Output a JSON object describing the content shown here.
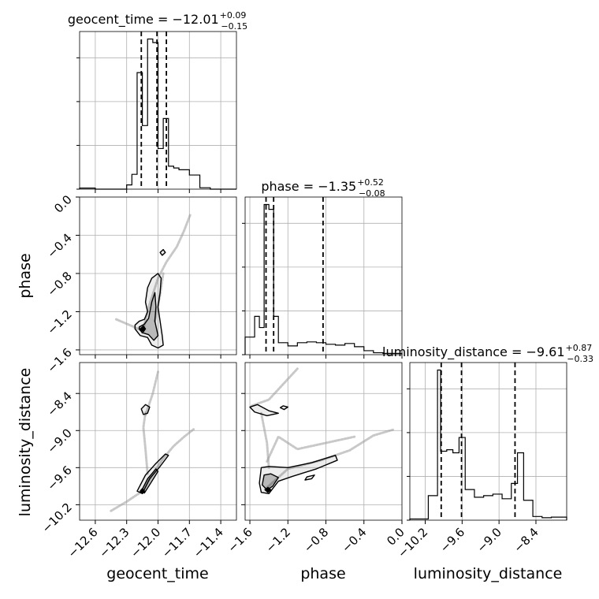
{
  "chart_data": {
    "type": "corner",
    "parameters": [
      "geocent_time",
      "phase",
      "luminosity_distance"
    ],
    "titles": [
      {
        "param": "geocent_time",
        "text": "geocent_time = −12.01",
        "plus": "+0.09",
        "minus": "−0.15"
      },
      {
        "param": "phase",
        "text": "phase = −1.35",
        "plus": "+0.52",
        "minus": "−0.08"
      },
      {
        "param": "luminosity_distance",
        "text": "luminosity_distance = −9.61",
        "plus": "+0.87",
        "minus": "−0.33"
      }
    ],
    "axis_labels": {
      "x": [
        "geocent_time",
        "phase",
        "luminosity_distance"
      ],
      "y": [
        "phase",
        "luminosity_distance"
      ]
    },
    "ranges": {
      "geocent_time": [
        -12.75,
        -11.25
      ],
      "phase": [
        -1.65,
        0.0
      ],
      "luminosity_distance": [
        -10.45,
        -7.9
      ]
    },
    "ticks": {
      "geocent_time": {
        "values": [
          -12.6,
          -12.3,
          -12.0,
          -11.7,
          -11.4
        ],
        "labels": [
          "−12.6",
          "−12.3",
          "−12.0",
          "−11.7",
          "−11.4"
        ]
      },
      "phase": {
        "values": [
          -1.6,
          -1.2,
          -0.8,
          -0.4,
          0.0
        ],
        "labels": [
          "−1.6",
          "−1.2",
          "−0.8",
          "−0.4",
          "0.0"
        ]
      },
      "luminosity_distance": {
        "values": [
          -10.2,
          -9.6,
          -9.0,
          -8.4
        ],
        "labels": [
          "−10.2",
          "−9.6",
          "−9.0",
          "−8.4"
        ]
      }
    },
    "quantiles": {
      "geocent_time": [
        -12.16,
        -12.01,
        -11.92
      ],
      "phase": [
        -1.43,
        -1.35,
        -0.83
      ],
      "luminosity_distance": [
        -9.94,
        -9.61,
        -8.74
      ]
    },
    "histograms": {
      "geocent_time": {
        "edges": [
          -12.75,
          -12.6,
          -12.45,
          -12.3,
          -12.25,
          -12.2,
          -12.15,
          -12.1,
          -12.05,
          -12.0,
          -11.95,
          -11.9,
          -11.85,
          -11.8,
          -11.7,
          -11.6,
          -11.5,
          -11.25
        ],
        "heights": [
          0.3,
          0.0,
          0.0,
          1.2,
          4.2,
          33.0,
          18.0,
          42.5,
          41.5,
          11.5,
          20.0,
          6.5,
          6.0,
          5.5,
          4.0,
          0.4,
          0.0
        ]
      },
      "phase": {
        "edges": [
          -1.65,
          -1.55,
          -1.5,
          -1.45,
          -1.4,
          -1.35,
          -1.3,
          -1.2,
          -1.1,
          -1.0,
          -0.9,
          -0.8,
          -0.7,
          -0.6,
          -0.5,
          -0.4,
          -0.3,
          -0.2,
          0.0
        ],
        "heights": [
          11.0,
          24.0,
          17.0,
          94.0,
          91.0,
          24.0,
          7.5,
          5.5,
          7.5,
          8.0,
          7.5,
          6.5,
          6.0,
          7.0,
          5.0,
          2.5,
          1.2,
          0.8
        ]
      },
      "luminosity_distance": {
        "edges": [
          -10.45,
          -10.3,
          -10.15,
          -10.0,
          -9.95,
          -9.85,
          -9.75,
          -9.65,
          -9.55,
          -9.4,
          -9.25,
          -9.1,
          -8.95,
          -8.8,
          -8.7,
          -8.6,
          -8.45,
          -8.3,
          -8.15,
          -7.9
        ],
        "heights": [
          0.4,
          0.4,
          8.0,
          49.0,
          22.5,
          23.0,
          22.0,
          27.0,
          10.0,
          7.5,
          8.0,
          8.5,
          7.0,
          12.0,
          22.0,
          6.5,
          1.2,
          0.8,
          1.0
        ]
      }
    },
    "scatter_tracks": [
      {
        "pair": [
          "geocent_time",
          "phase"
        ],
        "path": [
          [
            -12.15,
            -1.42
          ],
          [
            -12.08,
            -1.12
          ],
          [
            -12.0,
            -0.85
          ],
          [
            -11.92,
            -0.68
          ],
          [
            -11.82,
            -0.52
          ],
          [
            -11.75,
            -0.35
          ],
          [
            -11.69,
            -0.18
          ]
        ]
      },
      {
        "pair": [
          "geocent_time",
          "phase"
        ],
        "path": [
          [
            -12.4,
            -1.28
          ],
          [
            -12.25,
            -1.35
          ],
          [
            -12.15,
            -1.4
          ]
        ]
      },
      {
        "pair": [
          "geocent_time",
          "phase"
        ],
        "path": [
          [
            -12.03,
            -1.3
          ],
          [
            -11.98,
            -1.02
          ],
          [
            -11.95,
            -0.8
          ]
        ]
      },
      {
        "pair": [
          "geocent_time",
          "luminosity_distance"
        ],
        "path": [
          [
            -12.14,
            -9.95
          ],
          [
            -12.05,
            -9.7
          ],
          [
            -11.95,
            -9.45
          ],
          [
            -11.85,
            -9.25
          ],
          [
            -11.75,
            -9.1
          ],
          [
            -11.66,
            -8.98
          ]
        ]
      },
      {
        "pair": [
          "geocent_time",
          "luminosity_distance"
        ],
        "path": [
          [
            -12.1,
            -9.7
          ],
          [
            -12.12,
            -9.3
          ],
          [
            -12.14,
            -8.95
          ],
          [
            -12.12,
            -8.7
          ]
        ]
      },
      {
        "pair": [
          "geocent_time",
          "luminosity_distance"
        ],
        "path": [
          [
            -12.12,
            -8.75
          ],
          [
            -12.05,
            -8.4
          ],
          [
            -12.0,
            -8.05
          ]
        ]
      },
      {
        "pair": [
          "geocent_time",
          "luminosity_distance"
        ],
        "path": [
          [
            -12.45,
            -10.3
          ],
          [
            -12.3,
            -10.15
          ],
          [
            -12.15,
            -9.98
          ]
        ]
      },
      {
        "pair": [
          "phase",
          "luminosity_distance"
        ],
        "path": [
          [
            -1.44,
            -9.95
          ],
          [
            -1.2,
            -9.62
          ],
          [
            -0.85,
            -9.48
          ],
          [
            -0.55,
            -9.32
          ],
          [
            -0.3,
            -9.08
          ],
          [
            -0.08,
            -8.98
          ]
        ]
      },
      {
        "pair": [
          "phase",
          "luminosity_distance"
        ],
        "path": [
          [
            -1.42,
            -9.5
          ],
          [
            -1.3,
            -9.1
          ],
          [
            -1.1,
            -9.3
          ],
          [
            -0.8,
            -9.2
          ],
          [
            -0.5,
            -9.1
          ]
        ]
      },
      {
        "pair": [
          "phase",
          "luminosity_distance"
        ],
        "path": [
          [
            -1.58,
            -8.6
          ],
          [
            -1.4,
            -8.5
          ],
          [
            -1.25,
            -8.25
          ],
          [
            -1.1,
            -8.0
          ]
        ]
      },
      {
        "pair": [
          "phase",
          "luminosity_distance"
        ],
        "path": [
          [
            -1.48,
            -8.72
          ],
          [
            -1.42,
            -9.2
          ],
          [
            -1.4,
            -9.6
          ]
        ]
      }
    ],
    "contours": [
      {
        "pair": [
          "geocent_time",
          "phase"
        ],
        "level": "outer",
        "path": [
          [
            -12.22,
            -1.34
          ],
          [
            -12.18,
            -1.3
          ],
          [
            -12.13,
            -1.28
          ],
          [
            -12.1,
            -1.2
          ],
          [
            -12.12,
            -1.1
          ],
          [
            -12.1,
            -0.95
          ],
          [
            -12.06,
            -0.85
          ],
          [
            -12.0,
            -0.8
          ],
          [
            -11.97,
            -0.85
          ],
          [
            -11.98,
            -1.0
          ],
          [
            -12.0,
            -1.15
          ],
          [
            -11.98,
            -1.3
          ],
          [
            -11.96,
            -1.45
          ],
          [
            -11.95,
            -1.55
          ],
          [
            -12.0,
            -1.58
          ],
          [
            -12.06,
            -1.55
          ],
          [
            -12.1,
            -1.47
          ],
          [
            -12.17,
            -1.45
          ],
          [
            -12.22,
            -1.38
          ],
          [
            -12.22,
            -1.34
          ]
        ]
      },
      {
        "pair": [
          "geocent_time",
          "phase"
        ],
        "level": "inner",
        "path": [
          [
            -12.18,
            -1.36
          ],
          [
            -12.13,
            -1.33
          ],
          [
            -12.09,
            -1.27
          ],
          [
            -12.06,
            -1.1
          ],
          [
            -12.03,
            -1.0
          ],
          [
            -12.02,
            -1.15
          ],
          [
            -12.03,
            -1.3
          ],
          [
            -12.0,
            -1.45
          ],
          [
            -12.04,
            -1.5
          ],
          [
            -12.09,
            -1.44
          ],
          [
            -12.15,
            -1.42
          ],
          [
            -12.18,
            -1.38
          ],
          [
            -12.18,
            -1.36
          ]
        ]
      },
      {
        "pair": [
          "geocent_time",
          "phase"
        ],
        "level": "core",
        "path": [
          [
            -12.17,
            -1.38
          ],
          [
            -12.14,
            -1.35
          ],
          [
            -12.12,
            -1.38
          ],
          [
            -12.14,
            -1.41
          ],
          [
            -12.17,
            -1.38
          ]
        ]
      },
      {
        "pair": [
          "geocent_time",
          "phase"
        ],
        "level": "outer",
        "path": [
          [
            -11.98,
            -0.58
          ],
          [
            -11.95,
            -0.55
          ],
          [
            -11.93,
            -0.58
          ],
          [
            -11.96,
            -0.61
          ],
          [
            -11.98,
            -0.58
          ]
        ]
      },
      {
        "pair": [
          "geocent_time",
          "luminosity_distance"
        ],
        "level": "outer",
        "path": [
          [
            -12.2,
            -9.98
          ],
          [
            -12.12,
            -9.72
          ],
          [
            -12.03,
            -9.55
          ],
          [
            -11.93,
            -9.38
          ],
          [
            -11.9,
            -9.4
          ],
          [
            -11.98,
            -9.58
          ],
          [
            -12.08,
            -9.78
          ],
          [
            -12.15,
            -10.02
          ],
          [
            -12.2,
            -9.98
          ]
        ]
      },
      {
        "pair": [
          "geocent_time",
          "luminosity_distance"
        ],
        "level": "inner",
        "path": [
          [
            -12.16,
            -9.98
          ],
          [
            -12.1,
            -9.78
          ],
          [
            -12.02,
            -9.62
          ],
          [
            -12.0,
            -9.66
          ],
          [
            -12.07,
            -9.85
          ],
          [
            -12.13,
            -10.01
          ],
          [
            -12.16,
            -9.98
          ]
        ]
      },
      {
        "pair": [
          "geocent_time",
          "luminosity_distance"
        ],
        "level": "core",
        "path": [
          [
            -12.17,
            -9.98
          ],
          [
            -12.15,
            -9.94
          ],
          [
            -12.13,
            -9.98
          ],
          [
            -12.15,
            -10.02
          ],
          [
            -12.17,
            -9.98
          ]
        ]
      },
      {
        "pair": [
          "geocent_time",
          "luminosity_distance"
        ],
        "level": "outer",
        "path": [
          [
            -12.16,
            -8.65
          ],
          [
            -12.12,
            -8.58
          ],
          [
            -12.08,
            -8.62
          ],
          [
            -12.1,
            -8.72
          ],
          [
            -12.14,
            -8.74
          ],
          [
            -12.16,
            -8.65
          ]
        ]
      },
      {
        "pair": [
          "phase",
          "luminosity_distance"
        ],
        "level": "outer",
        "path": [
          [
            -1.5,
            -9.85
          ],
          [
            -1.48,
            -9.6
          ],
          [
            -1.4,
            -9.58
          ],
          [
            -1.2,
            -9.6
          ],
          [
            -0.95,
            -9.52
          ],
          [
            -0.7,
            -9.4
          ],
          [
            -0.68,
            -9.48
          ],
          [
            -0.9,
            -9.62
          ],
          [
            -1.15,
            -9.74
          ],
          [
            -1.3,
            -9.82
          ],
          [
            -1.4,
            -10.02
          ],
          [
            -1.48,
            -10.0
          ],
          [
            -1.5,
            -9.85
          ]
        ]
      },
      {
        "pair": [
          "phase",
          "luminosity_distance"
        ],
        "level": "inner",
        "path": [
          [
            -1.47,
            -9.88
          ],
          [
            -1.45,
            -9.72
          ],
          [
            -1.38,
            -9.7
          ],
          [
            -1.3,
            -9.76
          ],
          [
            -1.36,
            -9.9
          ],
          [
            -1.42,
            -9.96
          ],
          [
            -1.47,
            -9.88
          ]
        ]
      },
      {
        "pair": [
          "phase",
          "luminosity_distance"
        ],
        "level": "core",
        "path": [
          [
            -1.44,
            -9.96
          ],
          [
            -1.41,
            -9.92
          ],
          [
            -1.38,
            -9.96
          ],
          [
            -1.41,
            -10.0
          ],
          [
            -1.44,
            -9.96
          ]
        ]
      },
      {
        "pair": [
          "phase",
          "luminosity_distance"
        ],
        "level": "outer",
        "path": [
          [
            -1.6,
            -8.62
          ],
          [
            -1.52,
            -8.58
          ],
          [
            -1.4,
            -8.68
          ],
          [
            -1.3,
            -8.72
          ],
          [
            -1.42,
            -8.76
          ],
          [
            -1.55,
            -8.7
          ],
          [
            -1.6,
            -8.62
          ]
        ]
      },
      {
        "pair": [
          "phase",
          "luminosity_distance"
        ],
        "level": "outer",
        "path": [
          [
            -1.25,
            -8.6
          ],
          [
            -1.2,
            -8.62
          ],
          [
            -1.24,
            -8.66
          ],
          [
            -1.28,
            -8.63
          ],
          [
            -1.25,
            -8.6
          ]
        ]
      },
      {
        "pair": [
          "phase",
          "luminosity_distance"
        ],
        "level": "outer",
        "path": [
          [
            -1.0,
            -9.75
          ],
          [
            -0.92,
            -9.72
          ],
          [
            -0.95,
            -9.78
          ],
          [
            -1.02,
            -9.8
          ],
          [
            -1.0,
            -9.75
          ]
        ]
      }
    ],
    "grid": true,
    "line_color": "#000000",
    "scatter_color": "#9a9a9a"
  }
}
